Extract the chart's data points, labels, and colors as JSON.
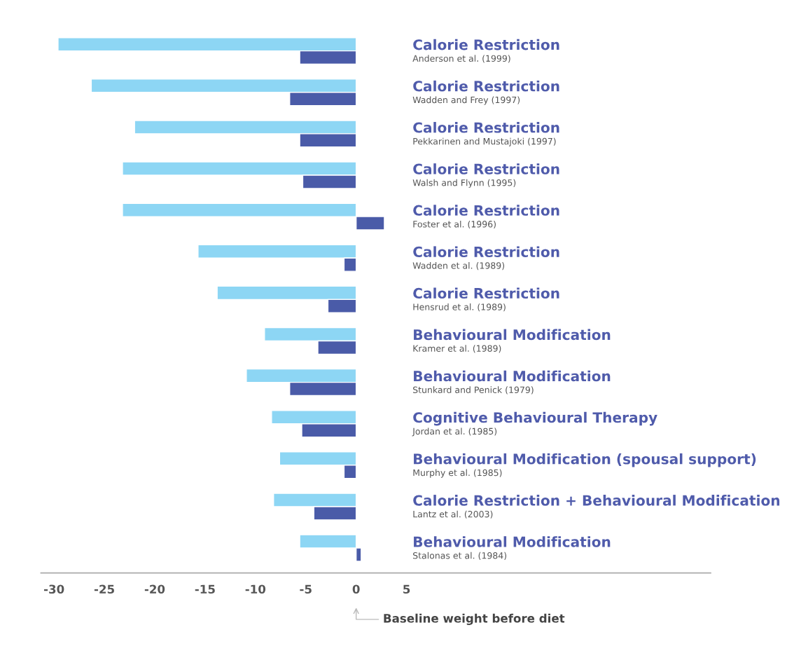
{
  "chart_data": {
    "type": "bar",
    "orientation": "horizontal",
    "categories": [
      "Calorie Restriction\nAnderson et al. (1999)",
      "Calorie Restriction\nWadden and Frey (1997)",
      "Calorie Restriction\nPekkarinen and Mustajoki (1997)",
      "Calorie Restriction\nWalsh and Flynn (1995)",
      "Calorie Restriction\nFoster et al. (1996)",
      "Calorie Restriction\nWadden et al. (1989)",
      "Calorie Restriction\nHensrud et al. (1989)",
      "Behavioural Modification\nKramer et al. (1989)",
      "Behavioural Modification\nStunkard and Penick (1979)",
      "Cognitive Behavioural Therapy\nJordan et al. (1985)",
      "Behavioural Modification (spousal support)\nMurphy et al. (1985)",
      "Calorie Restriction + Behavioural Modification\nLantz et al. (2003)",
      "Behavioural Modification\nStalonas et al. (1984)"
    ],
    "series": [
      {
        "color": "#8dd6f4",
        "values": [
          -29.6,
          -26.3,
          -22.0,
          -23.2,
          -23.2,
          -15.7,
          -13.8,
          -9.1,
          -10.9,
          -8.4,
          -7.6,
          -8.2,
          -5.6
        ]
      },
      {
        "color": "#4a5ba8",
        "values": [
          -5.6,
          -6.6,
          -5.6,
          -5.3,
          2.8,
          -1.2,
          -2.8,
          -3.8,
          -6.6,
          -5.4,
          -1.2,
          -4.2,
          0.5
        ]
      }
    ],
    "xlim": [
      -31.3,
      35.2
    ],
    "xticks": [
      -30,
      -25,
      -20,
      -15,
      -10,
      -5,
      0,
      5
    ],
    "annotations": [
      "Baseline weight before diet"
    ],
    "grid": false
  }
}
